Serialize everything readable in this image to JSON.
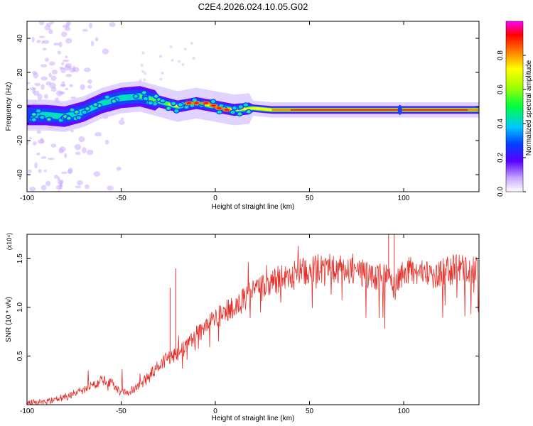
{
  "title": "C2E4.2026.024.10.05.G02",
  "colorbar": {
    "label": "Normalized spectral amplitude",
    "ticks": [
      "0.0",
      "0.2",
      "0.4",
      "0.6",
      "0.8"
    ]
  },
  "chart_data": [
    {
      "type": "heatmap",
      "xlabel": "Height of straight line (km)",
      "ylabel": "Frequency (Hz)",
      "xlim": [
        -100,
        140
      ],
      "ylim": [
        -50,
        50
      ],
      "xticks": [
        "-100",
        "-50",
        "0",
        "50",
        "100"
      ],
      "yticks": [
        "-40",
        "-20",
        "0",
        "20",
        "40"
      ],
      "ridge": {
        "x": [
          -100,
          -90,
          -80,
          -70,
          -60,
          -50,
          -40,
          -30,
          -20,
          -10,
          0,
          10,
          20,
          30,
          50,
          70,
          90,
          110,
          140
        ],
        "freq": [
          -5,
          -5,
          -6,
          -3,
          2,
          5,
          6,
          3,
          0,
          2,
          0,
          -2,
          -1,
          -2,
          -2,
          -2,
          -2,
          -2,
          -2
        ]
      }
    },
    {
      "type": "line",
      "xlabel": "Height of straight line (km)",
      "ylabel": "SNR (10 * v/v)",
      "yunit": "(x10⁴)",
      "xlim": [
        -100,
        140
      ],
      "ylim": [
        0,
        1.75
      ],
      "xticks": [
        "-100",
        "-50",
        "0",
        "50",
        "100"
      ],
      "yticks": [
        "0.5",
        "1.0",
        "1.5"
      ],
      "series": [
        {
          "color": "#e8302a",
          "x": [
            -100,
            -90,
            -80,
            -70,
            -60,
            -55,
            -50,
            -45,
            -40,
            -35,
            -30,
            -25,
            -20,
            -15,
            -10,
            -5,
            0,
            5,
            10,
            15,
            20,
            25,
            30,
            35,
            40,
            45,
            50,
            55,
            60,
            65,
            70,
            75,
            80,
            85,
            90,
            95,
            100,
            105,
            110,
            115,
            120,
            125,
            130,
            135,
            140
          ],
          "values": [
            0.02,
            0.03,
            0.08,
            0.15,
            0.25,
            0.22,
            0.12,
            0.14,
            0.2,
            0.3,
            0.4,
            0.48,
            0.52,
            0.6,
            0.72,
            0.8,
            0.9,
            0.95,
            1.0,
            1.08,
            1.15,
            1.2,
            1.25,
            1.3,
            1.33,
            1.35,
            1.38,
            1.4,
            1.4,
            1.38,
            1.38,
            1.35,
            1.35,
            1.3,
            1.35,
            1.2,
            1.35,
            1.38,
            1.38,
            1.32,
            1.35,
            1.38,
            1.4,
            1.4,
            1.38
          ]
        }
      ]
    }
  ]
}
